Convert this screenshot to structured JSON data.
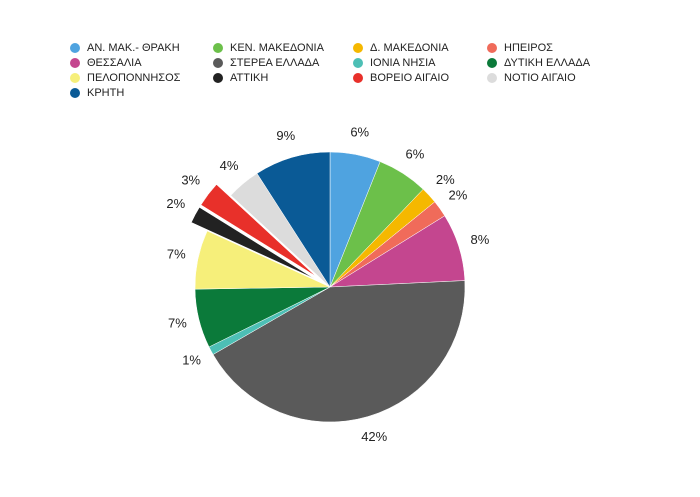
{
  "chart_data": {
    "type": "pie",
    "categories": [
      "ΑΝ. ΜΑΚ.- ΘΡΑΚΗ",
      "ΚΕΝ. ΜΑΚΕΔΟΝΙΑ",
      "Δ. ΜΑΚΕΔΟΝΙΑ",
      "ΗΠΕΙΡΟΣ",
      "ΘΕΣΣΑΛΙΑ",
      "ΣΤΕΡΕΑ ΕΛΛΑΔΑ",
      "ΙΟΝΙΑ ΝΗΣΙΑ",
      "ΔΥΤΙΚΗ ΕΛΛΑΔΑ",
      "ΠΕΛΟΠΟΝΝΗΣΟΣ",
      "ΑΤΤΙΚΗ",
      "ΒΟΡΕΙΟ ΑΙΓΑΙΟ",
      "ΝΟΤΙΟ ΑΙΓΑΙΟ",
      "ΚΡΗΤΗ"
    ],
    "values": [
      6,
      6,
      2,
      2,
      8,
      42,
      1,
      7,
      7,
      2,
      3,
      4,
      9
    ],
    "value_labels": [
      "6%",
      "6%",
      "2%",
      "2%",
      "8%",
      "42%",
      "1%",
      "7%",
      "7%",
      "2%",
      "3%",
      "4%",
      "9%"
    ],
    "colors": [
      "#4fa3e0",
      "#6cc04a",
      "#f5b800",
      "#f06b5a",
      "#c4468f",
      "#5a5a5a",
      "#4dbfb5",
      "#0b7a3a",
      "#f6ef7a",
      "#222222",
      "#e8302a",
      "#dcdcdc",
      "#0a5a96"
    ],
    "explode": [
      false,
      false,
      false,
      false,
      false,
      false,
      false,
      false,
      false,
      true,
      true,
      false,
      false
    ],
    "legend": "top"
  }
}
